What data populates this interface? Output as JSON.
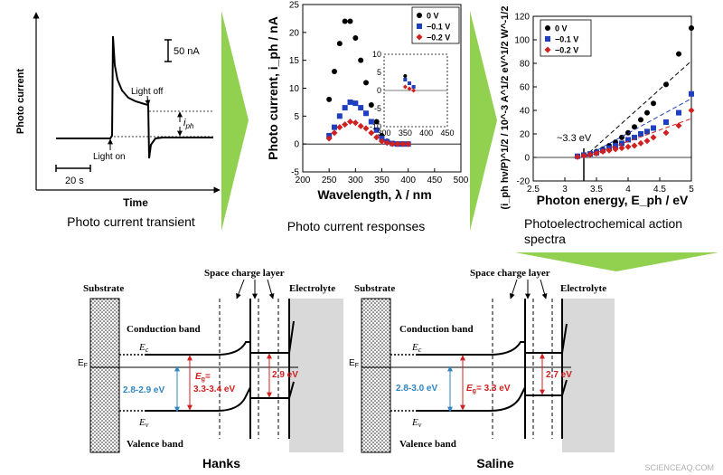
{
  "transient": {
    "ylabel": "Photo current",
    "xlabel": "Time",
    "scale_current": "50 nA",
    "scale_time": "20 s",
    "light_off": "Light off",
    "light_on": "Light on",
    "iph_i": "i",
    "iph_sub": "ph",
    "caption": "Photo current transient"
  },
  "panel_responses": {
    "caption": "Photo current responses",
    "legend": [
      "0 V",
      "−0.1 V",
      "−0.2 V"
    ]
  },
  "panel_action": {
    "caption_line1": "Photoelectrochemical action",
    "caption_line2": "spectra",
    "bandgap_label": "~3.3 eV",
    "legend": [
      "0 V",
      "−0.1 V",
      "−0.2 V"
    ]
  },
  "diagram_hanks": {
    "title": "Hanks",
    "substrate": "Substrate",
    "space_charge": "Space charge layer",
    "electrolyte": "Electrolyte",
    "conduction": "Conduction band",
    "valence": "Valence band",
    "ec_main": "E",
    "ec_sub": "c",
    "ev_main": "E",
    "ev_sub": "v",
    "ef_main": "E",
    "ef_sub": "F",
    "gap_left": "2.8-2.9 eV",
    "eg_main": "E",
    "eg_sub": "g",
    "eg_eq": "=",
    "eg_value": "3.3-3.4 eV",
    "gap_right": "2.9 eV"
  },
  "diagram_saline": {
    "title": "Saline",
    "substrate": "Substrate",
    "space_charge": "Space charge layer",
    "electrolyte": "Electrolyte",
    "conduction": "Conduction band",
    "valence": "Valence band",
    "ec_main": "E",
    "ec_sub": "c",
    "ev_main": "E",
    "ev_sub": "v",
    "ef_main": "E",
    "ef_sub": "F",
    "gap_left": "2.8-3.0 eV",
    "eg_main": "E",
    "eg_sub": "g",
    "eg_value": "= 3.3 eV",
    "gap_right": "2.7 eV"
  },
  "watermark": "SCIENCEAQ.COM",
  "colors": {
    "arrow_green": "#92d050",
    "blue": "#1f3fbf",
    "red": "#d02020",
    "teal": "#2e86c1",
    "electrolyte_gray": "#d9d9d9"
  },
  "chart_data": [
    {
      "type": "scatter",
      "title": "Photo current responses",
      "xlabel": "Wavelength, λ / nm",
      "ylabel": "Photo current, i_ph / nA",
      "xlim": [
        200,
        500
      ],
      "ylim": [
        -5,
        25
      ],
      "xticks": [
        "200",
        "250",
        "300",
        "350",
        "400",
        "450",
        "500"
      ],
      "yticks": [
        "-5",
        "0",
        "5",
        "10",
        "15",
        "20",
        "25"
      ],
      "series": [
        {
          "name": "0 V",
          "color": "#000000",
          "marker": "circle",
          "x": [
            250,
            260,
            270,
            280,
            290,
            300,
            310,
            320,
            330,
            340,
            350,
            360,
            370,
            380,
            390,
            400
          ],
          "y": [
            8,
            13,
            18,
            22,
            22,
            19,
            15,
            11,
            7,
            4,
            1.5,
            0.5,
            0.1,
            0,
            0,
            0
          ]
        },
        {
          "name": "−0.1 V",
          "color": "#1f3fbf",
          "marker": "square",
          "x": [
            250,
            260,
            270,
            280,
            290,
            300,
            310,
            320,
            330,
            340,
            350,
            360,
            370,
            380,
            390,
            400
          ],
          "y": [
            1.5,
            3,
            5,
            6.5,
            7.5,
            7.3,
            6.5,
            5.5,
            4,
            2.5,
            1,
            0.4,
            0.1,
            0,
            0,
            0
          ]
        },
        {
          "name": "−0.2 V",
          "color": "#d02020",
          "marker": "diamond",
          "x": [
            250,
            260,
            270,
            280,
            290,
            300,
            310,
            320,
            330,
            340,
            350,
            360,
            370,
            380,
            390,
            400
          ],
          "y": [
            1,
            2,
            3,
            3.5,
            4,
            3.8,
            3.2,
            2.8,
            2,
            1.2,
            0.5,
            0.2,
            0,
            0,
            0,
            0
          ]
        }
      ],
      "inset": {
        "xlim": [
          300,
          450
        ],
        "ylim": [
          -10,
          10
        ],
        "xticks": [
          "300",
          "350",
          "400",
          "450"
        ],
        "yticks": [
          "-10",
          "-5",
          "0",
          "5",
          "10"
        ],
        "series": [
          {
            "name": "0 V",
            "x": [
              350,
              360,
              370
            ],
            "y": [
              4,
              2,
              1
            ]
          },
          {
            "name": "−0.1 V",
            "x": [
              350,
              360,
              370
            ],
            "y": [
              3,
              2,
              1
            ]
          },
          {
            "name": "−0.2 V",
            "x": [
              350,
              360,
              370
            ],
            "y": [
              1,
              0.5,
              0
            ]
          }
        ]
      }
    },
    {
      "type": "scatter",
      "title": "Photoelectrochemical action spectra",
      "xlabel": "Photon energy, E_ph / eV",
      "ylabel": "(i_ph hν/P)^1/2 / 10^-3 A^1/2 eV^1/2 W^-1/2",
      "xlim": [
        2.5,
        5
      ],
      "ylim": [
        -20,
        120
      ],
      "xticks": [
        "2.5",
        "3",
        "3.5",
        "4",
        "4.5",
        "5"
      ],
      "yticks": [
        "-20",
        "0",
        "20",
        "40",
        "60",
        "80",
        "100",
        "120"
      ],
      "bandgap": 3.3,
      "series": [
        {
          "name": "0 V",
          "color": "#000000",
          "marker": "circle",
          "x": [
            3.2,
            3.3,
            3.4,
            3.5,
            3.6,
            3.7,
            3.8,
            3.9,
            4.0,
            4.1,
            4.2,
            4.3,
            4.4,
            4.6,
            4.8,
            5.0
          ],
          "y": [
            1,
            2,
            3,
            5,
            7,
            10,
            13,
            17,
            21,
            26,
            32,
            38,
            46,
            62,
            88,
            110
          ],
          "fit": [
            [
              3.3,
              0
            ],
            [
              5.0,
              82
            ]
          ]
        },
        {
          "name": "−0.1 V",
          "color": "#1f3fbf",
          "marker": "square",
          "x": [
            3.2,
            3.3,
            3.4,
            3.5,
            3.6,
            3.7,
            3.8,
            3.9,
            4.0,
            4.1,
            4.2,
            4.3,
            4.4,
            4.6,
            4.8,
            5.0
          ],
          "y": [
            1,
            2,
            3,
            4,
            6,
            8,
            10,
            12,
            15,
            17,
            20,
            22,
            25,
            30,
            38,
            54
          ],
          "fit": [
            [
              3.3,
              0
            ],
            [
              5.0,
              50
            ]
          ]
        },
        {
          "name": "−0.2 V",
          "color": "#d02020",
          "marker": "diamond",
          "x": [
            3.2,
            3.3,
            3.4,
            3.5,
            3.6,
            3.7,
            3.8,
            3.9,
            4.0,
            4.1,
            4.2,
            4.3,
            4.4,
            4.6,
            4.8,
            5.0
          ],
          "y": [
            0.5,
            1.5,
            2.5,
            3.5,
            5,
            6,
            7,
            8,
            9,
            10,
            12,
            14,
            17,
            21,
            27,
            40
          ],
          "fit": [
            [
              3.3,
              0
            ],
            [
              5.0,
              33
            ]
          ]
        }
      ]
    }
  ]
}
